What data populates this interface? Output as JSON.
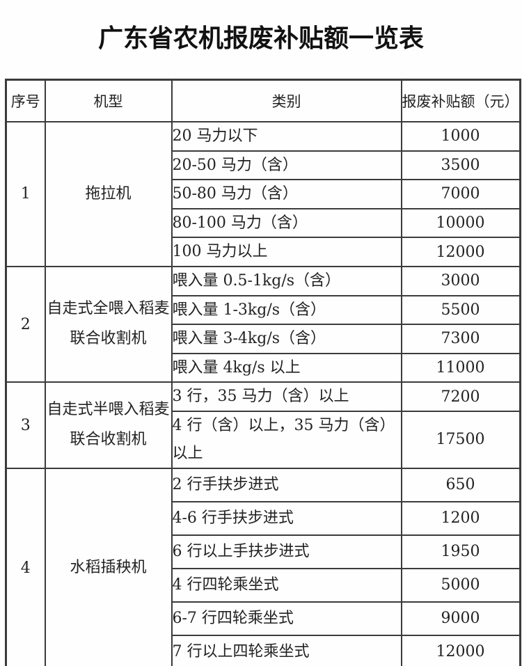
{
  "title": "广东省农机报废补贴额一览表",
  "table": {
    "headers": [
      "序号",
      "机型",
      "类别",
      "报废补贴额（元）"
    ],
    "sections": [
      {
        "index": "1",
        "machine": "拖拉机",
        "rows": [
          {
            "category": "20 马力以下",
            "amount": "1000"
          },
          {
            "category": "20-50 马力（含）",
            "amount": "3500"
          },
          {
            "category": "50-80 马力（含）",
            "amount": "7000"
          },
          {
            "category": "80-100 马力（含）",
            "amount": "10000"
          },
          {
            "category": "100 马力以上",
            "amount": "12000"
          }
        ]
      },
      {
        "index": "2",
        "machine": "自走式全喂入稻麦联合收割机",
        "rows": [
          {
            "category": "喂入量 0.5-1kg/s（含）",
            "amount": "3000"
          },
          {
            "category": "喂入量 1-3kg/s（含）",
            "amount": "5500"
          },
          {
            "category": "喂入量 3-4kg/s（含）",
            "amount": "7300"
          },
          {
            "category": "喂入量 4kg/s 以上",
            "amount": "11000"
          }
        ]
      },
      {
        "index": "3",
        "machine": "自走式半喂入稻麦联合收割机",
        "rows": [
          {
            "category": "3 行，35 马力（含）以上",
            "amount": "7200"
          },
          {
            "category": "4 行（含）以上，35 马力（含）以上",
            "amount": "17500",
            "tall": true
          }
        ]
      },
      {
        "index": "4",
        "machine": "水稻插秧机",
        "rows": [
          {
            "category": "2 行手扶步进式",
            "amount": "650"
          },
          {
            "category": "4-6 行手扶步进式",
            "amount": "1200"
          },
          {
            "category": "6 行以上手扶步进式",
            "amount": "1950"
          },
          {
            "category": "4 行四轮乘坐式",
            "amount": "5000"
          },
          {
            "category": "6-7 行四轮乘坐式",
            "amount": "9000"
          },
          {
            "category": "7 行以上四轮乘坐式",
            "amount": "12000"
          }
        ]
      }
    ]
  }
}
